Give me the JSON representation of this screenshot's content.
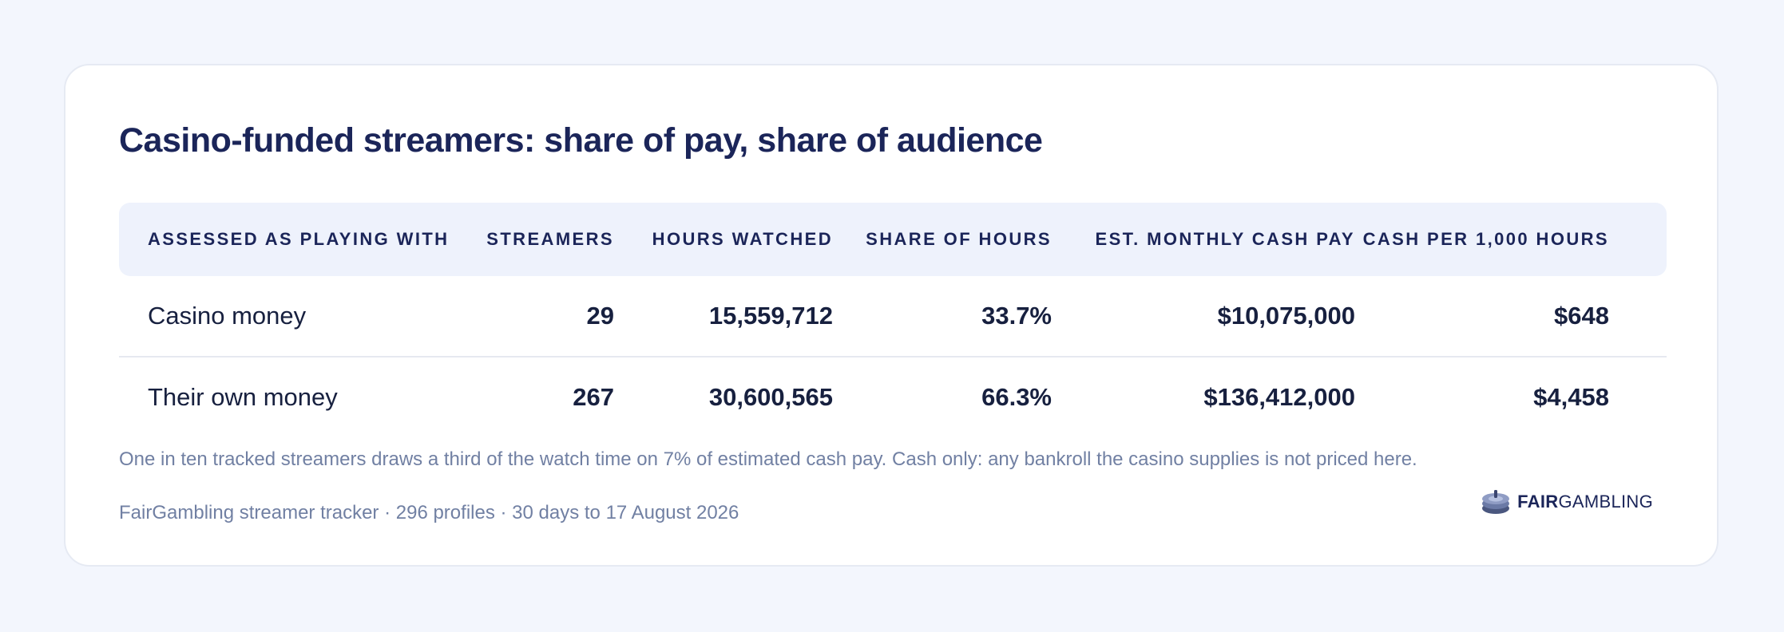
{
  "chart_data": {
    "type": "table",
    "title": "Casino-funded streamers: share of pay, share of audience",
    "columns": [
      "Assessed as playing with",
      "Streamers",
      "Hours watched",
      "Share of hours",
      "Est. monthly cash pay",
      "Cash per 1,000 hours"
    ],
    "rows": [
      [
        "Casino money",
        "29",
        "15,559,712",
        "33.7%",
        "$10,075,000",
        "$648"
      ],
      [
        "Their own money",
        "267",
        "30,600,565",
        "66.3%",
        "$136,412,000",
        "$4,458"
      ]
    ],
    "note": "One in ten tracked streamers draws a third of the watch time on 7% of estimated cash pay. Cash only: any bankroll the casino supplies is not priced here.",
    "source": "FairGambling streamer tracker · 296 profiles · 30 days to 17 August 2026"
  },
  "logo": {
    "bold": "FAIR",
    "rest": "GAMBLING",
    "icon": "poker-chip-stack-icon"
  },
  "colors": {
    "title": "#1b2559",
    "header_bg": "#eef2fc",
    "muted": "#7180a3",
    "page_bg": "#f3f6fd"
  }
}
